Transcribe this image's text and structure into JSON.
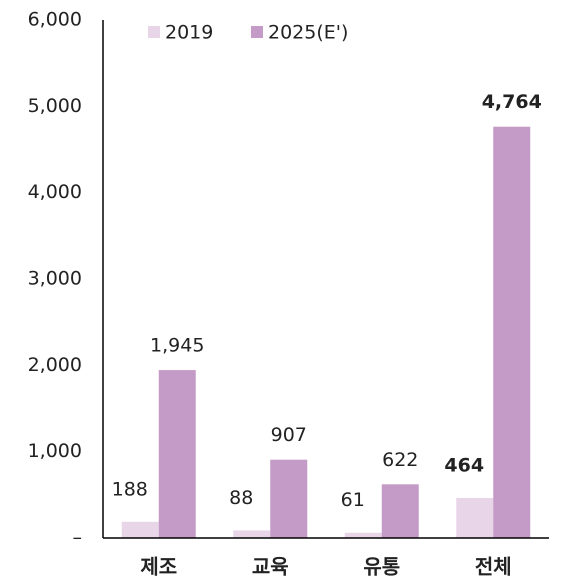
{
  "chart_data": {
    "type": "bar",
    "categories": [
      "제조",
      "교육",
      "유통",
      "전체"
    ],
    "series": [
      {
        "name": "2019",
        "color": "#e8d5e8",
        "values": [
          188,
          88,
          61,
          464
        ],
        "value_labels": [
          "188",
          "88",
          "61",
          "464"
        ]
      },
      {
        "name": "2025(E')",
        "color": "#c49ac6",
        "values": [
          1945,
          907,
          622,
          4764
        ],
        "value_labels": [
          "1,945",
          "907",
          "622",
          "4,764"
        ]
      }
    ],
    "ylim": [
      0,
      6000
    ],
    "yticks": [
      {
        "value": 0,
        "label": "–"
      },
      {
        "value": 1000,
        "label": "1,000"
      },
      {
        "value": 2000,
        "label": "2,000"
      },
      {
        "value": 3000,
        "label": "3,000"
      },
      {
        "value": 4000,
        "label": "4,000"
      },
      {
        "value": 5000,
        "label": "5,000"
      },
      {
        "value": 6000,
        "label": "6,000"
      }
    ],
    "grid": false,
    "legend": "top"
  }
}
